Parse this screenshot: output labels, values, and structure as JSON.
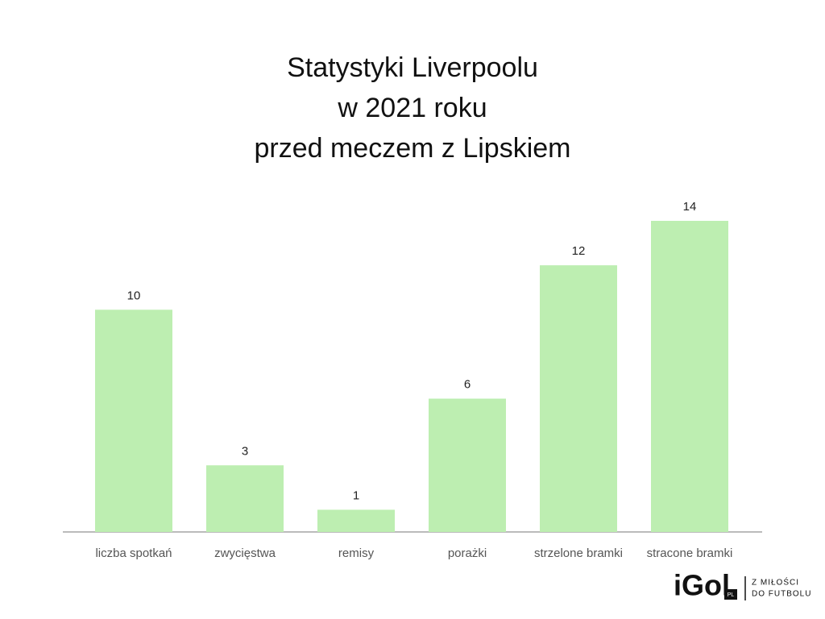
{
  "chart_data": {
    "type": "bar",
    "title": [
      "Statystyki Liverpoolu",
      "w 2021 roku",
      "przed meczem z Lipskiem"
    ],
    "categories": [
      "liczba spotkań",
      "zwycięstwa",
      "remisy",
      "porażki",
      "strzelone bramki",
      "stracone bramki"
    ],
    "values": [
      10,
      3,
      1,
      6,
      12,
      14
    ],
    "color": "#bdeeb1"
  },
  "logo": {
    "brand": "iGol",
    "badge": "PL",
    "tagline": [
      "Z MIŁOŚCI",
      "DO FUTBOLU"
    ]
  }
}
